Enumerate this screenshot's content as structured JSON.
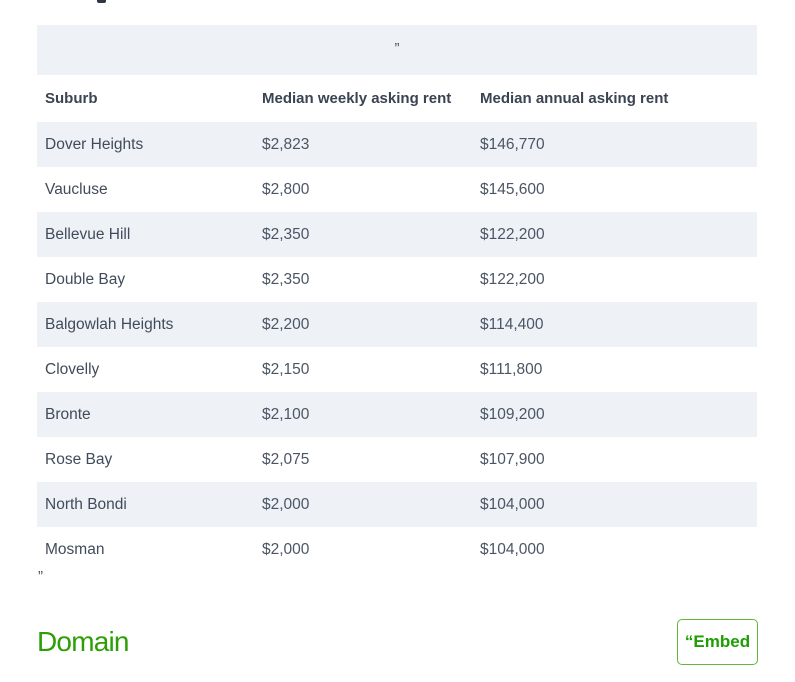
{
  "banner": {
    "quote": "”"
  },
  "table": {
    "columns": [
      "Suburb",
      "Median weekly asking rent",
      "Median annual asking rent"
    ],
    "rows": [
      {
        "suburb": "Dover Heights",
        "weekly": "$2,823",
        "annual": "$146,770"
      },
      {
        "suburb": "Vaucluse",
        "weekly": "$2,800",
        "annual": "$145,600"
      },
      {
        "suburb": "Bellevue Hill",
        "weekly": "$2,350",
        "annual": "$122,200"
      },
      {
        "suburb": "Double Bay",
        "weekly": "$2,350",
        "annual": "$122,200"
      },
      {
        "suburb": "Balgowlah Heights",
        "weekly": "$2,200",
        "annual": "$114,400"
      },
      {
        "suburb": "Clovelly",
        "weekly": "$2,150",
        "annual": "$111,800"
      },
      {
        "suburb": "Bronte",
        "weekly": "$2,100",
        "annual": "$109,200"
      },
      {
        "suburb": "Rose Bay",
        "weekly": "$2,075",
        "annual": "$107,900"
      },
      {
        "suburb": "North Bondi",
        "weekly": "$2,000",
        "annual": "$104,000"
      },
      {
        "suburb": "Mosman",
        "weekly": "$2,000",
        "annual": "$104,000"
      }
    ]
  },
  "closing_quote": "”",
  "footer": {
    "brand": "Domain",
    "embed_label": "“Embed"
  },
  "colors": {
    "brand_green": "#2e9e07",
    "row_shade": "#eef2f6",
    "text_dark": "#3b4452"
  }
}
